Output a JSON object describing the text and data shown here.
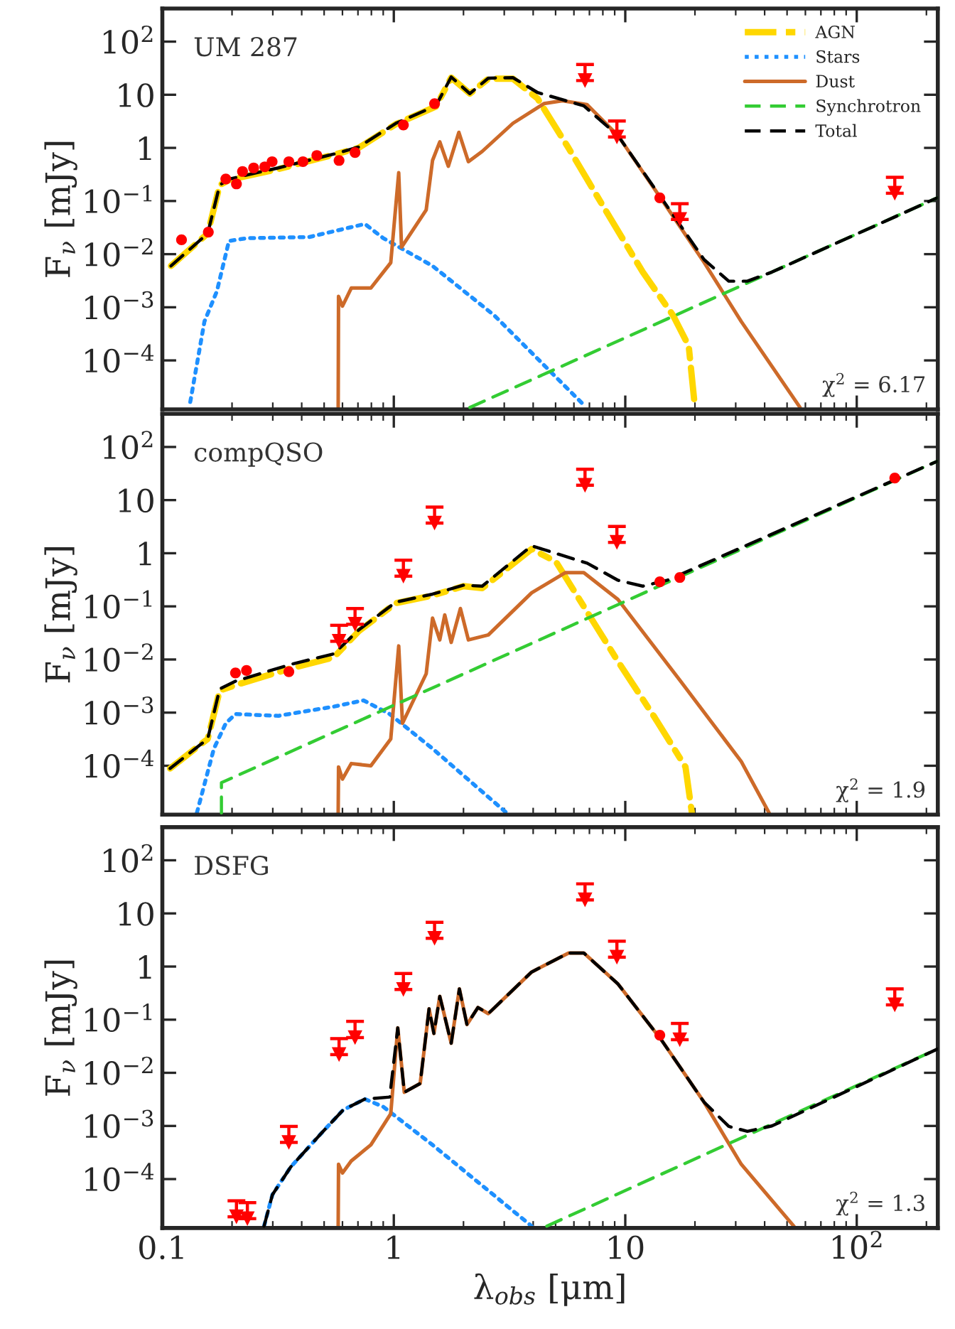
{
  "chart_data": [
    {
      "type": "line",
      "ylabel": "F$_{ν}$ [mJy]",
      "log": "xy",
      "xlim": [
        0.1,
        224
      ],
      "ylim": [
        1.2e-05,
        420
      ],
      "xticks": [
        {
          "value": 0.1,
          "label": null
        },
        {
          "value": 1,
          "label": null
        },
        {
          "value": 10,
          "label": null
        },
        {
          "value": 100,
          "label": null
        }
      ],
      "yticks": [
        {
          "value": 0.0001,
          "label": "10$^{−4}$"
        },
        {
          "value": 0.001,
          "label": "10$^{−3}$"
        },
        {
          "value": 0.01,
          "label": "10$^{−2}$"
        },
        {
          "value": 0.1,
          "label": "10$^{−1}$"
        },
        1,
        10,
        {
          "value": 100,
          "label": "10$^{2}$"
        }
      ],
      "tick_labels": "y",
      "legend": "top right",
      "annotations": [
        "UM 287",
        "χ$^{2}$ = 6.17"
      ],
      "series": [
        {
          "name": "AGN",
          "color": "#ffd700",
          "line_style": "dashdot",
          "x": [
            0.109,
            0.157,
            0.177,
            0.195,
            0.317,
            0.586,
            0.705,
            1.02,
            1.52,
            1.77,
            2.13,
            2.56,
            3.27,
            4.18,
            5.69,
            8.2,
            11.9,
            16.1,
            18.8,
            20.0
          ],
          "values": [
            0.006,
            0.0245,
            0.2,
            0.25,
            0.4,
            0.8,
            1.0,
            2.8,
            6.0,
            21,
            10.5,
            20,
            20,
            8.5,
            0.99,
            0.068,
            0.0046,
            0.0007,
            0.000185,
            1.3e-05
          ]
        },
        {
          "name": "Stars",
          "color": "#1e90ff",
          "line_style": "dotted",
          "x": [
            0.132,
            0.152,
            0.172,
            0.194,
            0.233,
            0.431,
            0.75,
            0.9,
            1.47,
            2.72,
            6.62
          ],
          "values": [
            1.65e-05,
            0.00054,
            0.002,
            0.0177,
            0.02,
            0.021,
            0.037,
            0.02,
            0.006,
            0.0007,
            1.45e-05
          ]
        },
        {
          "name": "Dust",
          "color": "#cd6a29",
          "line_style": "solid",
          "x": [
            0.575,
            0.577,
            0.6,
            0.655,
            0.796,
            0.97,
            1.05,
            1.08,
            1.38,
            1.47,
            1.58,
            1.72,
            1.91,
            2.1,
            2.41,
            3.27,
            4.45,
            5.35,
            6.84,
            9.3,
            14.3,
            21.9,
            31.7,
            56.9
          ],
          "values": [
            1.3e-05,
            0.0016,
            0.00105,
            0.0023,
            0.0023,
            0.0069,
            0.34,
            0.0135,
            0.068,
            0.58,
            1.3,
            0.45,
            1.96,
            0.55,
            0.86,
            2.9,
            6.8,
            7.7,
            6.5,
            1.7,
            0.11,
            0.007,
            0.00054,
            1.3e-05
          ]
        },
        {
          "name": "Synchrotron",
          "color": "#33cc33",
          "line_style": "dashed",
          "x": [
            2.13,
            223
          ],
          "values": [
            1.3e-05,
            0.115
          ]
        },
        {
          "name": "Total",
          "color": "#000000",
          "line_style": "dashed",
          "x": [
            0.109,
            0.157,
            0.177,
            0.195,
            0.317,
            0.586,
            0.705,
            1.02,
            1.52,
            1.77,
            2.13,
            2.56,
            3.27,
            4.18,
            6.62,
            9.3,
            14.3,
            21.9,
            28,
            33.7,
            43,
            223
          ],
          "values": [
            0.006,
            0.0245,
            0.2,
            0.26,
            0.42,
            0.82,
            1.04,
            2.9,
            6.2,
            21.6,
            10.5,
            20.5,
            21,
            11,
            6.2,
            1.7,
            0.115,
            0.0079,
            0.0031,
            0.0031,
            0.0046,
            0.115
          ]
        },
        {
          "type": "scatter",
          "marker": "circle",
          "color": "#ff0000",
          "x": [
            0.121,
            0.158,
            0.188,
            0.209,
            0.222,
            0.248,
            0.277,
            0.298,
            0.352,
            0.405,
            0.465,
            0.58,
            0.68,
            1.1,
            1.5,
            14.1
          ],
          "values": [
            0.0186,
            0.026,
            0.26,
            0.21,
            0.36,
            0.42,
            0.44,
            0.55,
            0.55,
            0.55,
            0.72,
            0.58,
            0.82,
            2.7,
            6.8,
            0.115
          ]
        },
        {
          "type": "scatter",
          "marker": "triangle",
          "color": "#ff0000",
          "x": [
            6.7,
            9.2,
            17.2,
            146
          ],
          "values": [
            18.5,
            1.6,
            0.045,
            0.14
          ],
          "errors": [
            [
              18.5,
              37
            ],
            [
              1.6,
              3.2
            ],
            [
              0.045,
              0.089
            ],
            [
              0.14,
              0.28
            ]
          ]
        }
      ]
    },
    {
      "type": "line",
      "ylabel": "F$_{ν}$ [mJy]",
      "log": "xy",
      "xlim": [
        0.1,
        224
      ],
      "ylim": [
        1.2e-05,
        420
      ],
      "xticks": [
        {
          "value": 0.1,
          "label": null
        },
        {
          "value": 1,
          "label": null
        },
        {
          "value": 10,
          "label": null
        },
        {
          "value": 100,
          "label": null
        }
      ],
      "yticks": [
        {
          "value": 0.0001,
          "label": "10$^{−4}$"
        },
        {
          "value": 0.001,
          "label": "10$^{−3}$"
        },
        {
          "value": 0.01,
          "label": "10$^{−2}$"
        },
        {
          "value": 0.1,
          "label": "10$^{−1}$"
        },
        1,
        10,
        {
          "value": 100,
          "label": "10$^{2}$"
        }
      ],
      "tick_labels": "y",
      "annotations": [
        "compQSO",
        "χ$^{2}$ = 1.9"
      ],
      "series": [
        {
          "color": "#ffd700",
          "line_style": "dashdot",
          "x": [
            0.108,
            0.157,
            0.177,
            0.207,
            0.359,
            0.551,
            0.705,
            1.02,
            1.47,
            2.0,
            2.41,
            3.94,
            5.02,
            6.84,
            9.3,
            13.4,
            18.2,
            19.4
          ],
          "values": [
            8.9e-05,
            0.00032,
            0.0026,
            0.0033,
            0.0068,
            0.011,
            0.034,
            0.115,
            0.16,
            0.24,
            0.22,
            1.2,
            0.69,
            0.079,
            0.0092,
            0.00081,
            9.5e-05,
            1.3e-05
          ]
        },
        {
          "color": "#1e90ff",
          "line_style": "dotted",
          "x": [
            0.141,
            0.167,
            0.188,
            0.207,
            0.317,
            0.551,
            0.74,
            0.96,
            1.47,
            3.07
          ],
          "values": [
            1.3e-05,
            0.00021,
            0.00063,
            0.00094,
            0.00087,
            0.0013,
            0.0017,
            0.00094,
            0.00021,
            1.3e-05
          ]
        },
        {
          "color": "#cd6a29",
          "line_style": "solid",
          "x": [
            0.575,
            0.577,
            0.6,
            0.655,
            0.796,
            0.97,
            1.05,
            1.09,
            1.38,
            1.47,
            1.58,
            1.66,
            1.77,
            1.94,
            2.1,
            2.56,
            3.94,
            5.5,
            6.62,
            9.3,
            17.2,
            31.7,
            41.8
          ],
          "values": [
            1.3e-05,
            9.5e-05,
            5.6e-05,
            0.00011,
            0.0001,
            0.00032,
            0.018,
            0.00063,
            0.0054,
            0.06,
            0.0234,
            0.069,
            0.021,
            0.091,
            0.0234,
            0.029,
            0.18,
            0.43,
            0.43,
            0.135,
            0.0041,
            0.00012,
            1.3e-05
          ]
        },
        {
          "color": "#33cc33",
          "line_style": "dashed",
          "x": [
            0.18,
            0.18,
            223
          ],
          "values": [
            1.3e-05,
            4.8e-05,
            54
          ]
        },
        {
          "color": "#000000",
          "line_style": "dashed",
          "x": [
            0.108,
            0.157,
            0.177,
            0.207,
            0.359,
            0.551,
            0.705,
            1.02,
            1.47,
            2.0,
            2.41,
            3.94,
            6.84,
            9.3,
            11.9,
            15.2,
            223
          ],
          "values": [
            8.9e-05,
            0.00032,
            0.0028,
            0.0039,
            0.0081,
            0.0128,
            0.036,
            0.12,
            0.17,
            0.25,
            0.24,
            1.38,
            0.65,
            0.31,
            0.24,
            0.31,
            54
          ]
        },
        {
          "type": "scatter",
          "marker": "circle",
          "color": "#ff0000",
          "x": [
            0.207,
            0.231,
            0.352,
            14.1,
            17.2,
            146
          ],
          "values": [
            0.0056,
            0.0062,
            0.0059,
            0.29,
            0.35,
            26
          ]
        },
        {
          "type": "scatter",
          "marker": "triangle",
          "color": "#ff0000",
          "x": [
            0.58,
            0.68,
            1.1,
            1.5,
            6.7,
            9.2
          ],
          "values": [
            0.022,
            0.046,
            0.37,
            3.7,
            19,
            1.6
          ],
          "errors": [
            [
              0.022,
              0.044
            ],
            [
              0.046,
              0.091
            ],
            [
              0.37,
              0.74
            ],
            [
              3.7,
              7.4
            ],
            [
              19,
              38
            ],
            [
              1.6,
              3.2
            ]
          ]
        }
      ]
    },
    {
      "type": "line",
      "ylabel": "F$_{ν}$ [mJy]",
      "xlabel": "λ$_{obs}$ [μm]",
      "log": "xy",
      "xlim": [
        0.1,
        224
      ],
      "ylim": [
        1.2e-05,
        420
      ],
      "xticks": [
        {
          "value": 0.1,
          "label": "0.1"
        },
        1,
        10,
        {
          "value": 100,
          "label": "10$^{2}$"
        }
      ],
      "yticks": [
        {
          "value": 0.0001,
          "label": "10$^{−4}$"
        },
        {
          "value": 0.001,
          "label": "10$^{−3}$"
        },
        {
          "value": 0.01,
          "label": "10$^{−2}$"
        },
        {
          "value": 0.1,
          "label": "10$^{−1}$"
        },
        1,
        10,
        {
          "value": 100,
          "label": "10$^{2}$"
        }
      ],
      "annotations": [
        "DSFG",
        "χ$^{2}$ = 1.3"
      ],
      "series": [
        {
          "color": "#1e90ff",
          "line_style": "dotted",
          "x": [
            0.275,
            0.299,
            0.359,
            0.488,
            0.604,
            0.75,
            0.9,
            1.47,
            3.94
          ],
          "values": [
            1.3e-05,
            5.1e-05,
            0.00017,
            0.00074,
            0.002,
            0.0032,
            0.0023,
            0.00044,
            1.3e-05
          ]
        },
        {
          "color": "#cd6a29",
          "line_style": "solid",
          "x": [
            0.575,
            0.577,
            0.6,
            0.655,
            0.796,
            0.97,
            1.04,
            1.11,
            1.3,
            1.42,
            1.49,
            1.58,
            1.77,
            1.92,
            2.07,
            2.31,
            2.56,
            3.94,
            5.69,
            6.62,
            9.3,
            14.3,
            21.9,
            31.7,
            53.5
          ],
          "values": [
            1.3e-05,
            0.00019,
            0.00013,
            0.00022,
            0.00044,
            0.0017,
            0.07,
            0.0043,
            0.0063,
            0.16,
            0.055,
            0.275,
            0.036,
            0.38,
            0.081,
            0.17,
            0.13,
            0.79,
            1.8,
            1.8,
            0.47,
            0.042,
            0.0028,
            0.00019,
            1.3e-05
          ]
        },
        {
          "color": "#33cc33",
          "line_style": "dashed",
          "x": [
            4.58,
            223
          ],
          "values": [
            1.3e-05,
            0.028
          ]
        },
        {
          "color": "#000000",
          "line_style": "dashed",
          "x": [
            0.275,
            0.299,
            0.359,
            0.488,
            0.604,
            0.75,
            0.96,
            1.04,
            1.11,
            1.3,
            1.42,
            1.49,
            1.58,
            1.77,
            1.92,
            2.07,
            2.31,
            2.56,
            3.94,
            5.69,
            6.62,
            9.3,
            14.3,
            21.9,
            28,
            33.7,
            43,
            223
          ],
          "values": [
            1.3e-05,
            5.1e-05,
            0.00017,
            0.00074,
            0.002,
            0.0032,
            0.0035,
            0.07,
            0.0043,
            0.0063,
            0.16,
            0.055,
            0.275,
            0.036,
            0.38,
            0.081,
            0.17,
            0.13,
            0.79,
            1.8,
            1.8,
            0.47,
            0.042,
            0.0028,
            0.00098,
            0.00079,
            0.001,
            0.028
          ]
        },
        {
          "type": "scatter",
          "marker": "circle",
          "color": "#ff0000",
          "x": [
            14.1
          ],
          "values": [
            0.051
          ]
        },
        {
          "type": "scatter",
          "marker": "triangle",
          "color": "#ff0000",
          "x": [
            0.209,
            0.233,
            0.352,
            0.58,
            0.68,
            1.1,
            1.5,
            6.7,
            9.2,
            17.2,
            146
          ],
          "values": [
            1.95e-05,
            1.8e-05,
            0.00049,
            0.022,
            0.046,
            0.37,
            3.4,
            18,
            1.5,
            0.042,
            0.19
          ],
          "errors": [
            [
              1.95e-05,
              3.9e-05
            ],
            [
              1.8e-05,
              3.6e-05
            ],
            [
              0.00049,
              0.00098
            ],
            [
              0.022,
              0.044
            ],
            [
              0.046,
              0.093
            ],
            [
              0.37,
              0.74
            ],
            [
              3.4,
              6.8
            ],
            [
              18,
              36
            ],
            [
              1.5,
              3.0
            ],
            [
              0.042,
              0.085
            ],
            [
              0.19,
              0.38
            ]
          ]
        }
      ]
    }
  ]
}
